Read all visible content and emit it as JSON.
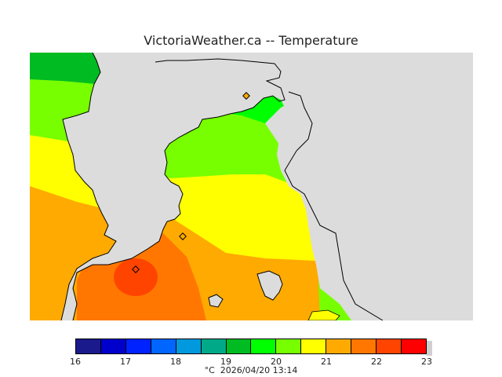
{
  "title": "VictoriaWeather.ca -- Temperature",
  "colors": {
    "land_grey": "#dcdcdc",
    "bands": [
      "#1a1a8c",
      "#0000cc",
      "#0022ff",
      "#0066ff",
      "#0099dd",
      "#00aa88",
      "#00bb22",
      "#00ff00",
      "#77ff00",
      "#ffff00",
      "#ffaa00",
      "#ff7700",
      "#ff4400",
      "#ff0000"
    ]
  },
  "legend": {
    "ticks": [
      "16",
      "17",
      "18",
      "19",
      "20",
      "21",
      "22",
      "23"
    ],
    "unit": "°C",
    "timestamp": "2026/04/20 13:14"
  },
  "icons": [
    "station-marker-icon"
  ]
}
